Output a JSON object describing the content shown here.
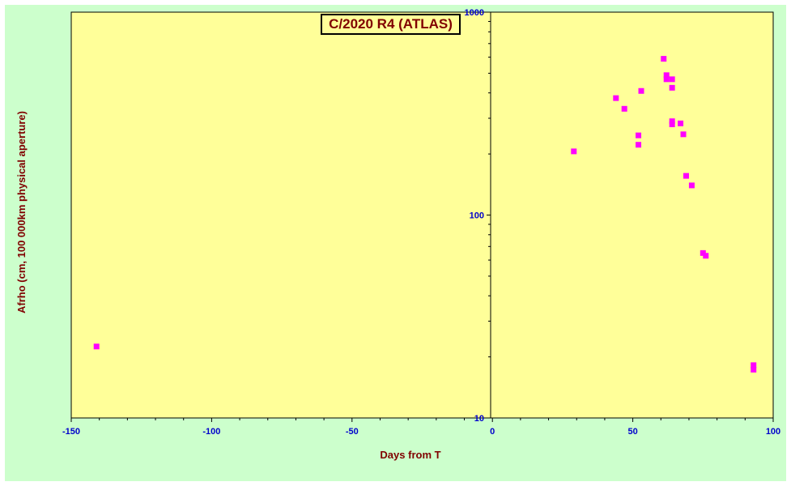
{
  "chart_data": {
    "type": "scatter",
    "title": "C/2020 R4 (ATLAS)",
    "xlabel": "Days from  T",
    "ylabel": "Afrho (cm, 100 000km physical aperture)",
    "xlim": [
      -150,
      100
    ],
    "ylim": [
      10,
      1000
    ],
    "yscale": "log",
    "x_ticks": [
      -150,
      -100,
      -50,
      0,
      50,
      100
    ],
    "y_ticks": [
      10,
      100,
      1000
    ],
    "grid": false,
    "series": [
      {
        "marker": "square",
        "color": "#ff00ff",
        "points": [
          {
            "x": -141,
            "y": 22.5
          },
          {
            "x": 29,
            "y": 206
          },
          {
            "x": 44,
            "y": 377
          },
          {
            "x": 47,
            "y": 334
          },
          {
            "x": 52,
            "y": 247
          },
          {
            "x": 52,
            "y": 222
          },
          {
            "x": 53,
            "y": 409
          },
          {
            "x": 61,
            "y": 589
          },
          {
            "x": 62,
            "y": 489
          },
          {
            "x": 62,
            "y": 467
          },
          {
            "x": 64,
            "y": 467
          },
          {
            "x": 64,
            "y": 424
          },
          {
            "x": 64,
            "y": 290
          },
          {
            "x": 64,
            "y": 280
          },
          {
            "x": 67,
            "y": 283
          },
          {
            "x": 68,
            "y": 250
          },
          {
            "x": 69,
            "y": 156
          },
          {
            "x": 71,
            "y": 140
          },
          {
            "x": 75,
            "y": 65
          },
          {
            "x": 76,
            "y": 63
          },
          {
            "x": 93,
            "y": 18.2
          },
          {
            "x": 93,
            "y": 17.3
          }
        ]
      }
    ]
  },
  "colors": {
    "outer_background": "#ccffcc",
    "plot_background": "#ffff99",
    "marker": "#ff00ff",
    "tick_labels": "#0000cc",
    "axis_titles": "#800000"
  }
}
